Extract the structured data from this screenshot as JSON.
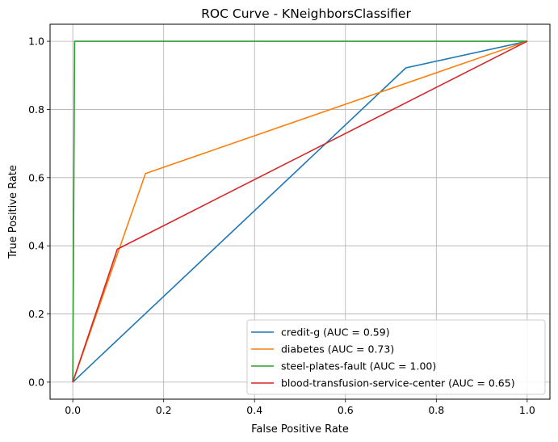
{
  "chart_data": {
    "type": "line",
    "title": "ROC Curve - KNeighborsClassifier",
    "xlabel": "False Positive Rate",
    "ylabel": "True Positive Rate",
    "xlim": [
      -0.05,
      1.05
    ],
    "ylim": [
      -0.05,
      1.05
    ],
    "xticks": [
      0.0,
      0.2,
      0.4,
      0.6,
      0.8,
      1.0
    ],
    "yticks": [
      0.0,
      0.2,
      0.4,
      0.6,
      0.8,
      1.0
    ],
    "xtick_labels": [
      "0.0",
      "0.2",
      "0.4",
      "0.6",
      "0.8",
      "1.0"
    ],
    "ytick_labels": [
      "0.0",
      "0.2",
      "0.4",
      "0.6",
      "0.8",
      "1.0"
    ],
    "grid": true,
    "legend_position": "bottom-right",
    "series": [
      {
        "name": "credit-g (AUC = 0.59)",
        "color": "#1f77b4",
        "x": [
          0.0,
          0.733,
          1.0
        ],
        "y": [
          0.0,
          0.922,
          1.0
        ]
      },
      {
        "name": "diabetes (AUC = 0.73)",
        "color": "#ff7f0e",
        "x": [
          0.0,
          0.16,
          1.0
        ],
        "y": [
          0.0,
          0.612,
          1.0
        ]
      },
      {
        "name": "steel-plates-fault (AUC = 1.00)",
        "color": "#2ca02c",
        "x": [
          0.0,
          0.004,
          1.0
        ],
        "y": [
          0.0,
          1.0,
          1.0
        ]
      },
      {
        "name": "blood-transfusion-service-center (AUC = 0.65)",
        "color": "#d62728",
        "x": [
          0.0,
          0.098,
          1.0
        ],
        "y": [
          0.0,
          0.39,
          1.0
        ]
      }
    ]
  }
}
